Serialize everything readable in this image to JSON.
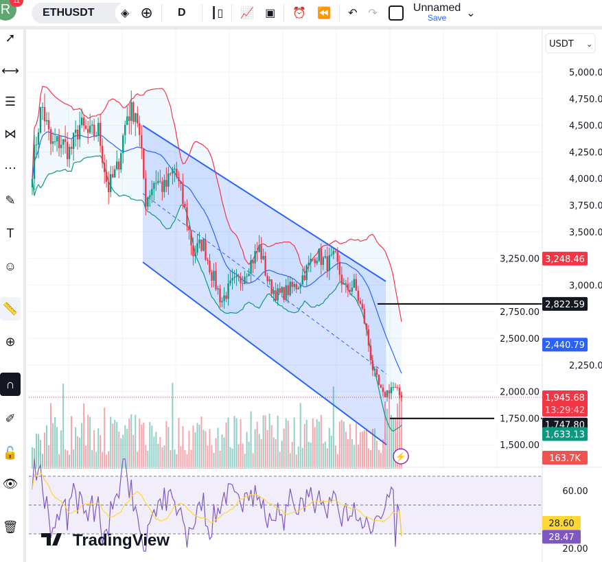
{
  "toolbar": {
    "avatar": "R",
    "badge": "11",
    "symbol": "ETHUSDT",
    "interval": "D",
    "layout_name": "Unnamed",
    "save_label": "Save",
    "icons": [
      "gem-icon",
      "add-symbol-icon",
      "candles-icon",
      "indicators-icon",
      "layouts-icon",
      "alert-icon",
      "replay-icon",
      "undo-icon",
      "redo-icon",
      "fullscreen-icon",
      "chevron-down-icon"
    ]
  },
  "left_toolbar": [
    "cursor-icon",
    "trend-line-icon",
    "horizontal-lines-icon",
    "pattern-icon",
    "fib-icon",
    "brush-icon",
    "text-icon",
    "emoji-icon",
    "ruler-icon",
    "zoom-in-icon",
    "magnet-icon",
    "lock-drawing-icon",
    "lock-icon",
    "eye-icon",
    "trash-icon"
  ],
  "currency_select": "USDT",
  "price_axis": {
    "ticks": [
      "5,000.00",
      "4,750.00",
      "4,500.00",
      "4,250.00",
      "4,000.00",
      "3,750.00",
      "3,500.00",
      "3,250.00",
      "3,000.00",
      "2,750.00",
      "2,500.00",
      "2,250.00",
      "2,000.00",
      "1,750.00",
      "1,500.00"
    ],
    "tick_values": [
      5000,
      4750,
      4500,
      4250,
      4000,
      3750,
      3500,
      3250,
      3000,
      2750,
      2500,
      2250,
      2000,
      1750,
      1500
    ]
  },
  "labels": {
    "bb_upper": "3,248.46",
    "hline_upper": "2,822.59",
    "bb_basis": "2,440.79",
    "last_price": "1,945.68",
    "countdown": "13:29:42",
    "hline_lower": "1,747.80",
    "bb_lower": "1,633.13",
    "volume": "163.7K"
  },
  "label_values": {
    "bb_upper": 3248.46,
    "hline_upper": 2822.59,
    "bb_basis": 2440.79,
    "last_price": 1945.68,
    "hline_lower": 1747.8,
    "bb_lower": 1633.13
  },
  "rsi": {
    "ticks": [
      "60.00",
      "20.00"
    ],
    "tick_values": [
      60,
      20
    ],
    "ma_label": "28.60",
    "rsi_label": "28.47",
    "bands": [
      70,
      50,
      30
    ]
  },
  "colors": {
    "up": "#089981",
    "down": "#f23645",
    "bb_upper": "#f23645",
    "bb_basis": "#2962ff",
    "bb_lower": "#089981",
    "channel": "#2962ff",
    "rsi": "#7e57c2",
    "rsi_ma": "#fdd835"
  },
  "price_path": [
    4100,
    4700,
    4300,
    4350,
    4250,
    4500,
    4400,
    4450,
    3900,
    4100,
    4600,
    4650,
    3800,
    4000,
    3900,
    4100,
    3750,
    3300,
    3400,
    3100,
    2850,
    3000,
    3050,
    3200,
    3350,
    3000,
    2900,
    2950,
    3000,
    3150,
    3300,
    3200,
    3250,
    2950,
    3000,
    2700,
    2200,
    1950,
    2050,
    1945.68
  ],
  "logo": "TradingView"
}
